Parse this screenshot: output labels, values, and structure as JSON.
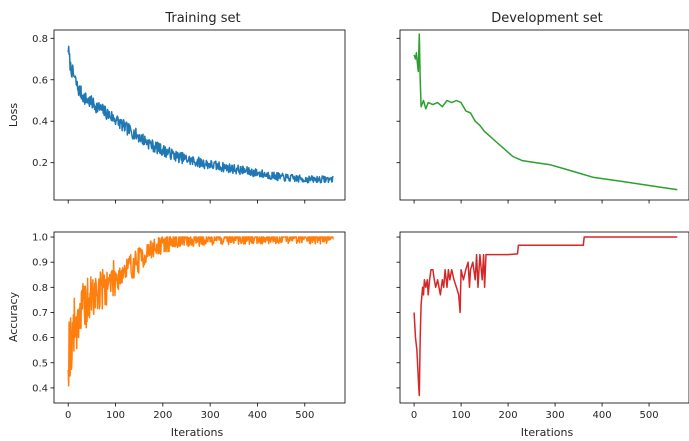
{
  "chart_data": [
    {
      "type": "line",
      "panel": "train-loss",
      "title": "Training set",
      "xlabel": "",
      "ylabel": "Loss",
      "color": "#1f77b4",
      "xlim": [
        -30,
        585
      ],
      "ylim": [
        0.02,
        0.84
      ],
      "xticks": [
        0,
        100,
        200,
        300,
        400,
        500
      ],
      "yticks": [
        0.2,
        0.4,
        0.6,
        0.8
      ],
      "ytick_labels": [
        "0.2",
        "0.4",
        "0.6",
        "0.8"
      ],
      "show_xtick_labels": false,
      "noise": 0.035,
      "seed": 7,
      "x_range": [
        0,
        560
      ],
      "points": [
        [
          0,
          0.75
        ],
        [
          5,
          0.66
        ],
        [
          12,
          0.62
        ],
        [
          20,
          0.56
        ],
        [
          35,
          0.51
        ],
        [
          55,
          0.48
        ],
        [
          80,
          0.44
        ],
        [
          100,
          0.41
        ],
        [
          120,
          0.37
        ],
        [
          140,
          0.34
        ],
        [
          160,
          0.31
        ],
        [
          180,
          0.28
        ],
        [
          200,
          0.26
        ],
        [
          230,
          0.23
        ],
        [
          260,
          0.21
        ],
        [
          300,
          0.19
        ],
        [
          350,
          0.17
        ],
        [
          400,
          0.15
        ],
        [
          450,
          0.13
        ],
        [
          500,
          0.12
        ],
        [
          560,
          0.12
        ]
      ]
    },
    {
      "type": "line",
      "panel": "dev-loss",
      "title": "Development set",
      "xlabel": "",
      "ylabel": "",
      "color": "#2ca02c",
      "xlim": [
        -30,
        585
      ],
      "ylim": [
        0.02,
        0.84
      ],
      "xticks": [
        0,
        100,
        200,
        300,
        400,
        500
      ],
      "yticks": [
        0.2,
        0.4,
        0.6,
        0.8
      ],
      "show_xtick_labels": false,
      "show_ytick_labels": false,
      "points": [
        [
          0,
          0.72
        ],
        [
          3,
          0.7
        ],
        [
          5,
          0.73
        ],
        [
          7,
          0.68
        ],
        [
          9,
          0.64
        ],
        [
          11,
          0.82
        ],
        [
          13,
          0.6
        ],
        [
          15,
          0.47
        ],
        [
          20,
          0.5
        ],
        [
          25,
          0.46
        ],
        [
          30,
          0.49
        ],
        [
          40,
          0.48
        ],
        [
          50,
          0.49
        ],
        [
          60,
          0.47
        ],
        [
          70,
          0.5
        ],
        [
          80,
          0.49
        ],
        [
          90,
          0.5
        ],
        [
          100,
          0.49
        ],
        [
          110,
          0.45
        ],
        [
          120,
          0.44
        ],
        [
          130,
          0.4
        ],
        [
          140,
          0.38
        ],
        [
          150,
          0.35
        ],
        [
          160,
          0.33
        ],
        [
          175,
          0.3
        ],
        [
          190,
          0.27
        ],
        [
          210,
          0.23
        ],
        [
          230,
          0.21
        ],
        [
          260,
          0.2
        ],
        [
          290,
          0.19
        ],
        [
          320,
          0.17
        ],
        [
          350,
          0.15
        ],
        [
          380,
          0.13
        ],
        [
          410,
          0.12
        ],
        [
          440,
          0.11
        ],
        [
          470,
          0.1
        ],
        [
          500,
          0.09
        ],
        [
          530,
          0.08
        ],
        [
          560,
          0.07
        ]
      ]
    },
    {
      "type": "line",
      "panel": "train-acc",
      "title": "",
      "xlabel": "Iterations",
      "ylabel": "Accuracy",
      "color": "#ff7f0e",
      "xlim": [
        -30,
        585
      ],
      "ylim": [
        0.34,
        1.02
      ],
      "xticks": [
        0,
        100,
        200,
        300,
        400,
        500
      ],
      "xtick_labels": [
        "0",
        "100",
        "200",
        "300",
        "400",
        "500"
      ],
      "yticks": [
        0.4,
        0.5,
        0.6,
        0.7,
        0.8,
        0.9,
        1.0
      ],
      "ytick_labels": [
        "0.4",
        "0.5",
        "0.6",
        "0.7",
        "0.8",
        "0.9",
        "1.0"
      ],
      "noise": 0.055,
      "cap": 1.0,
      "seed": 19,
      "x_range": [
        0,
        560
      ],
      "points": [
        [
          0,
          0.55
        ],
        [
          10,
          0.62
        ],
        [
          25,
          0.7
        ],
        [
          50,
          0.76
        ],
        [
          75,
          0.8
        ],
        [
          100,
          0.84
        ],
        [
          125,
          0.87
        ],
        [
          150,
          0.91
        ],
        [
          175,
          0.95
        ],
        [
          200,
          0.97
        ],
        [
          230,
          0.985
        ],
        [
          260,
          0.99
        ],
        [
          300,
          0.995
        ],
        [
          400,
          1.0
        ],
        [
          560,
          1.0
        ]
      ]
    },
    {
      "type": "line",
      "panel": "dev-acc",
      "title": "",
      "xlabel": "Iterations",
      "ylabel": "",
      "color": "#d62728",
      "xlim": [
        -30,
        585
      ],
      "ylim": [
        0.34,
        1.02
      ],
      "xticks": [
        0,
        100,
        200,
        300,
        400,
        500
      ],
      "xtick_labels": [
        "0",
        "100",
        "200",
        "300",
        "400",
        "500"
      ],
      "yticks": [
        0.4,
        0.5,
        0.6,
        0.7,
        0.8,
        0.9,
        1.0
      ],
      "show_ytick_labels": false,
      "points": [
        [
          0,
          0.7
        ],
        [
          3,
          0.6
        ],
        [
          6,
          0.55
        ],
        [
          8,
          0.47
        ],
        [
          10,
          0.4
        ],
        [
          11,
          0.37
        ],
        [
          13,
          0.6
        ],
        [
          15,
          0.73
        ],
        [
          18,
          0.8
        ],
        [
          20,
          0.77
        ],
        [
          22,
          0.83
        ],
        [
          25,
          0.8
        ],
        [
          28,
          0.83
        ],
        [
          30,
          0.77
        ],
        [
          33,
          0.83
        ],
        [
          36,
          0.87
        ],
        [
          40,
          0.87
        ],
        [
          43,
          0.83
        ],
        [
          46,
          0.8
        ],
        [
          50,
          0.83
        ],
        [
          53,
          0.8
        ],
        [
          56,
          0.77
        ],
        [
          60,
          0.83
        ],
        [
          63,
          0.8
        ],
        [
          66,
          0.87
        ],
        [
          70,
          0.8
        ],
        [
          73,
          0.87
        ],
        [
          76,
          0.83
        ],
        [
          80,
          0.87
        ],
        [
          85,
          0.83
        ],
        [
          90,
          0.8
        ],
        [
          95,
          0.77
        ],
        [
          98,
          0.7
        ],
        [
          100,
          0.87
        ],
        [
          105,
          0.83
        ],
        [
          110,
          0.87
        ],
        [
          115,
          0.9
        ],
        [
          118,
          0.8
        ],
        [
          120,
          0.87
        ],
        [
          125,
          0.9
        ],
        [
          130,
          0.83
        ],
        [
          133,
          0.93
        ],
        [
          136,
          0.8
        ],
        [
          140,
          0.93
        ],
        [
          145,
          0.83
        ],
        [
          148,
          0.93
        ],
        [
          150,
          0.8
        ],
        [
          153,
          0.93
        ],
        [
          160,
          0.93
        ],
        [
          180,
          0.93
        ],
        [
          200,
          0.93
        ],
        [
          220,
          0.933
        ],
        [
          222,
          0.967
        ],
        [
          300,
          0.967
        ],
        [
          360,
          0.967
        ],
        [
          362,
          1.0
        ],
        [
          560,
          1.0
        ]
      ]
    }
  ]
}
